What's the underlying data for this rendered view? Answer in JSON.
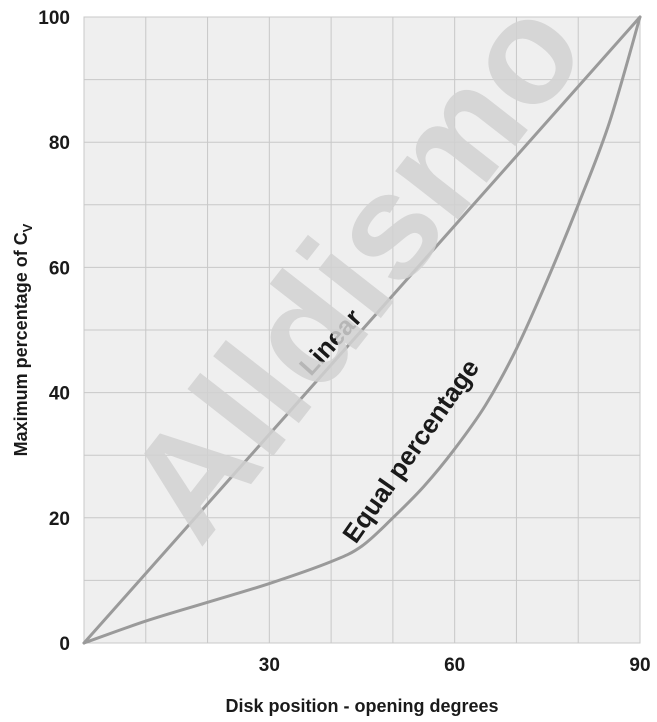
{
  "watermark": "Alldismo",
  "chart_data": {
    "type": "line",
    "xlabel": "Disk position - opening degrees",
    "ylabel": "Maximum percentage of C",
    "ylabel_subscript": "V",
    "xlim": [
      0,
      90
    ],
    "ylim": [
      0,
      100
    ],
    "x_ticks": [
      30,
      60,
      90
    ],
    "y_ticks": [
      0,
      20,
      40,
      60,
      80,
      100
    ],
    "grid": true,
    "colors": {
      "plot_bg": "#efefef",
      "grid": "#c8c8c8",
      "series": "#9a9a9a",
      "text": "#1a1a1a"
    },
    "series": [
      {
        "name": "Linear",
        "x": [
          0,
          90
        ],
        "y": [
          0,
          100
        ]
      },
      {
        "name": "Equal percentage",
        "x": [
          0,
          10,
          20,
          30,
          40,
          45,
          50,
          55,
          60,
          65,
          70,
          75,
          80,
          85,
          90
        ],
        "y": [
          0,
          3.5,
          6.5,
          9.5,
          13,
          15.5,
          20,
          25,
          31,
          38,
          47,
          58,
          70,
          83,
          100
        ]
      }
    ]
  }
}
